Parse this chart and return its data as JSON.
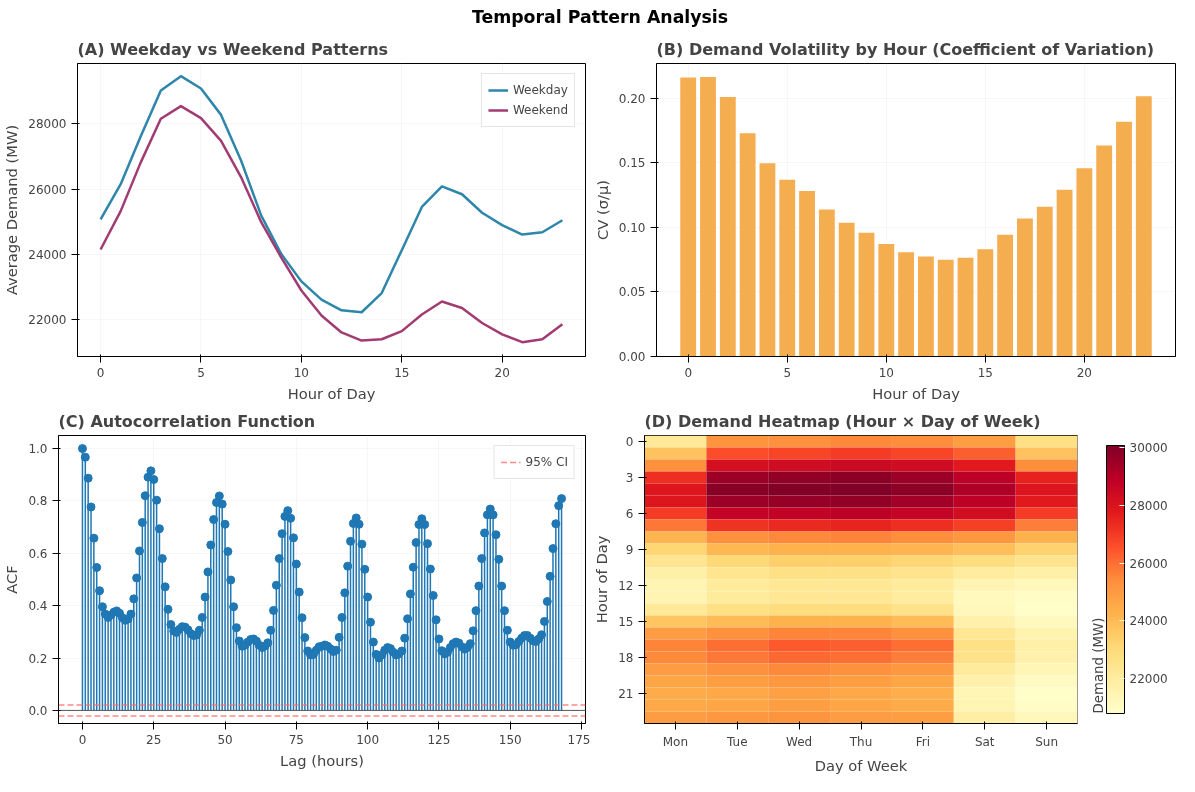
{
  "chart_data": [
    {
      "type": "other",
      "title": "Temporal Pattern Analysis"
    },
    {
      "type": "line",
      "title": "(A) Weekday vs Weekend Patterns",
      "xlabel": "Hour of Day",
      "ylabel": "Average Demand (MW)",
      "x": [
        0,
        1,
        2,
        3,
        4,
        5,
        6,
        7,
        8,
        9,
        10,
        11,
        12,
        13,
        14,
        15,
        16,
        17,
        18,
        19,
        20,
        21,
        22,
        23
      ],
      "series": [
        {
          "name": "Weekday",
          "color": "#2e86ab",
          "values": [
            25070,
            26150,
            27620,
            29030,
            29470,
            29090,
            28280,
            26870,
            25180,
            24000,
            23160,
            22600,
            22270,
            22210,
            22800,
            24120,
            25450,
            26080,
            25840,
            25270,
            24890,
            24600,
            24670,
            25040
          ]
        },
        {
          "name": "Weekend",
          "color": "#a23b72",
          "values": [
            24140,
            25320,
            26820,
            28160,
            28550,
            28180,
            27480,
            26360,
            24980,
            23890,
            22880,
            22110,
            21590,
            21340,
            21380,
            21630,
            22140,
            22540,
            22340,
            21880,
            21530,
            21290,
            21380,
            21840
          ]
        }
      ],
      "xlim": [
        -1.15,
        24.15
      ],
      "ylim": [
        20850,
        29860
      ],
      "xticks": [
        0,
        5,
        10,
        15,
        20
      ],
      "yticks": [
        22000,
        24000,
        26000,
        28000
      ],
      "grid": true,
      "legend": "top right",
      "line_style": "solid"
    },
    {
      "type": "bar",
      "title": "(B) Demand Volatility by Hour (Coefficient of Variation)",
      "xlabel": "Hour of Day",
      "ylabel": "CV (σ/μ)",
      "x": [
        0,
        1,
        2,
        3,
        4,
        5,
        6,
        7,
        8,
        9,
        10,
        11,
        12,
        13,
        14,
        15,
        16,
        17,
        18,
        19,
        20,
        21,
        22,
        23
      ],
      "values": [
        0.216,
        0.2164,
        0.2009,
        0.1729,
        0.1496,
        0.1369,
        0.1282,
        0.1138,
        0.1035,
        0.0957,
        0.087,
        0.0807,
        0.0775,
        0.0749,
        0.0764,
        0.083,
        0.0942,
        0.1069,
        0.1159,
        0.1291,
        0.1458,
        0.1634,
        0.1818,
        0.2014
      ],
      "color": "#f4ad4f",
      "xlim": [
        -1.6,
        24.6
      ],
      "ylim": [
        0,
        0.2268
      ],
      "xticks": [
        0,
        5,
        10,
        15,
        20
      ],
      "yticks": [
        {
          "value": 0,
          "label": "0.00"
        },
        {
          "value": 0.05,
          "label": "0.05"
        },
        {
          "value": 0.1,
          "label": "0.10"
        },
        {
          "value": 0.15,
          "label": "0.15"
        },
        {
          "value": 0.2,
          "label": "0.20"
        }
      ],
      "grid": true
    },
    {
      "type": "lollipop",
      "title": "(C) Autocorrelation Function",
      "xlabel": "Lag (hours)",
      "ylabel": "ACF",
      "x": [
        0,
        1,
        2,
        3,
        4,
        5,
        6,
        7,
        8,
        9,
        10,
        11,
        12,
        13,
        14,
        15,
        16,
        17,
        18,
        19,
        20,
        21,
        22,
        23,
        24,
        25,
        26,
        27,
        28,
        29,
        30,
        31,
        32,
        33,
        34,
        35,
        36,
        37,
        38,
        39,
        40,
        41,
        42,
        43,
        44,
        45,
        46,
        47,
        48,
        49,
        50,
        51,
        52,
        53,
        54,
        55,
        56,
        57,
        58,
        59,
        60,
        61,
        62,
        63,
        64,
        65,
        66,
        67,
        68,
        69,
        70,
        71,
        72,
        73,
        74,
        75,
        76,
        77,
        78,
        79,
        80,
        81,
        82,
        83,
        84,
        85,
        86,
        87,
        88,
        89,
        90,
        91,
        92,
        93,
        94,
        95,
        96,
        97,
        98,
        99,
        100,
        101,
        102,
        103,
        104,
        105,
        106,
        107,
        108,
        109,
        110,
        111,
        112,
        113,
        114,
        115,
        116,
        117,
        118,
        119,
        120,
        121,
        122,
        123,
        124,
        125,
        126,
        127,
        128,
        129,
        130,
        131,
        132,
        133,
        134,
        135,
        136,
        137,
        138,
        139,
        140,
        141,
        142,
        143,
        144,
        145,
        146,
        147,
        148,
        149,
        150,
        151,
        152,
        153,
        154,
        155,
        156,
        157,
        158,
        159,
        160,
        161,
        162,
        163,
        164,
        165,
        166,
        167,
        168
      ],
      "values": [
        1.0,
        0.967,
        0.887,
        0.777,
        0.658,
        0.546,
        0.457,
        0.396,
        0.368,
        0.355,
        0.364,
        0.375,
        0.38,
        0.371,
        0.354,
        0.344,
        0.349,
        0.368,
        0.426,
        0.506,
        0.609,
        0.718,
        0.82,
        0.891,
        0.915,
        0.882,
        0.803,
        0.694,
        0.58,
        0.472,
        0.386,
        0.328,
        0.303,
        0.298,
        0.31,
        0.32,
        0.318,
        0.308,
        0.293,
        0.286,
        0.288,
        0.306,
        0.355,
        0.433,
        0.529,
        0.632,
        0.729,
        0.794,
        0.819,
        0.788,
        0.711,
        0.607,
        0.498,
        0.396,
        0.316,
        0.265,
        0.245,
        0.249,
        0.261,
        0.271,
        0.273,
        0.265,
        0.249,
        0.24,
        0.246,
        0.258,
        0.306,
        0.382,
        0.478,
        0.58,
        0.675,
        0.741,
        0.763,
        0.734,
        0.659,
        0.559,
        0.452,
        0.354,
        0.278,
        0.227,
        0.212,
        0.214,
        0.23,
        0.243,
        0.245,
        0.25,
        0.245,
        0.235,
        0.225,
        0.23,
        0.279,
        0.355,
        0.449,
        0.551,
        0.646,
        0.714,
        0.735,
        0.711,
        0.635,
        0.539,
        0.433,
        0.337,
        0.261,
        0.214,
        0.2,
        0.212,
        0.23,
        0.24,
        0.236,
        0.222,
        0.212,
        0.216,
        0.227,
        0.276,
        0.35,
        0.445,
        0.547,
        0.641,
        0.71,
        0.732,
        0.71,
        0.637,
        0.54,
        0.439,
        0.346,
        0.273,
        0.228,
        0.216,
        0.222,
        0.24,
        0.255,
        0.261,
        0.257,
        0.243,
        0.234,
        0.24,
        0.255,
        0.304,
        0.381,
        0.475,
        0.58,
        0.678,
        0.747,
        0.769,
        0.747,
        0.671,
        0.577,
        0.475,
        0.381,
        0.306,
        0.261,
        0.249,
        0.251,
        0.263,
        0.276,
        0.286,
        0.286,
        0.276,
        0.266,
        0.263,
        0.273,
        0.289,
        0.34,
        0.416,
        0.512,
        0.618,
        0.713,
        0.782,
        0.809
      ],
      "color": "#1f77b4",
      "marker": "circle",
      "xlim": [
        -8.4,
        176.4
      ],
      "ylim": [
        -0.05,
        1.05
      ],
      "xticks": [
        0,
        25,
        50,
        75,
        100,
        125,
        150,
        175
      ],
      "yticks": [
        {
          "value": 0,
          "label": "0.0"
        },
        {
          "value": 0.2,
          "label": "0.2"
        },
        {
          "value": 0.4,
          "label": "0.4"
        },
        {
          "value": 0.6,
          "label": "0.6"
        },
        {
          "value": 0.8,
          "label": "0.8"
        },
        {
          "value": 1,
          "label": "1.0"
        }
      ],
      "ref_lines": [
        {
          "axis": "y",
          "value": 0.021,
          "label": "95% CI",
          "color": "#ff6b6b",
          "line_style": "dashed"
        },
        {
          "axis": "y",
          "value": -0.021,
          "color": "#ff6b6b",
          "line_style": "dashed"
        }
      ],
      "grid": true,
      "legend": "top right"
    },
    {
      "type": "heatmap",
      "title": "(D) Demand Heatmap (Hour × Day of Week)",
      "xlabel": "Day of Week",
      "ylabel": "Hour of Day",
      "clabel": "Demand (MW)",
      "categories": [
        "Mon",
        "Tue",
        "Wed",
        "Thu",
        "Fri",
        "Sat",
        "Sun"
      ],
      "y_categories": [
        "0",
        null,
        null,
        "3",
        null,
        null,
        "6",
        null,
        null,
        "9",
        null,
        null,
        "12",
        null,
        null,
        "15",
        null,
        null,
        "18",
        null,
        null,
        "21",
        null,
        null
      ],
      "cells": [
        [
          22200,
          25200,
          25300,
          25500,
          25400,
          24900,
          22700
        ],
        [
          23800,
          26600,
          26800,
          27000,
          26800,
          26300,
          23800
        ],
        [
          25300,
          28200,
          28400,
          28500,
          28400,
          27800,
          25400
        ],
        [
          27300,
          29500,
          29700,
          29800,
          29500,
          28900,
          27600
        ],
        [
          27900,
          29900,
          30000,
          30070,
          29800,
          29200,
          28000
        ],
        [
          27900,
          29500,
          29600,
          29700,
          29400,
          28900,
          27800
        ],
        [
          27000,
          28700,
          28800,
          28900,
          28700,
          28300,
          27000
        ],
        [
          25800,
          27200,
          27400,
          27500,
          27300,
          26900,
          25700
        ],
        [
          24200,
          25300,
          25500,
          25600,
          25400,
          25100,
          24300
        ],
        [
          23200,
          24100,
          24300,
          24300,
          24200,
          23900,
          23300
        ],
        [
          22400,
          23100,
          23400,
          23400,
          23200,
          22900,
          22500
        ],
        [
          21800,
          22400,
          22700,
          22700,
          22500,
          22000,
          21800
        ],
        [
          21500,
          22100,
          22300,
          22300,
          22100,
          21500,
          21300
        ],
        [
          21500,
          22100,
          22300,
          22300,
          22000,
          21200,
          21000
        ],
        [
          22200,
          22700,
          22900,
          22900,
          22600,
          21300,
          20900
        ],
        [
          23700,
          24000,
          24300,
          24300,
          24000,
          21700,
          21200
        ],
        [
          25000,
          25300,
          25600,
          25600,
          25300,
          22300,
          21600
        ],
        [
          25600,
          26000,
          26400,
          26300,
          26000,
          22700,
          21800
        ],
        [
          25500,
          25800,
          26100,
          26000,
          25700,
          22600,
          21700
        ],
        [
          25000,
          25300,
          25500,
          25300,
          25100,
          22100,
          21400
        ],
        [
          24700,
          24900,
          25100,
          24900,
          24700,
          21700,
          21100
        ],
        [
          24500,
          24600,
          24800,
          24600,
          24400,
          21400,
          20900
        ],
        [
          24600,
          24700,
          24900,
          24700,
          24500,
          21500,
          21000
        ],
        [
          25000,
          25100,
          25200,
          25000,
          24900,
          21900,
          21300
        ]
      ],
      "clim": [
        20800,
        30070
      ],
      "cticks": [
        22000,
        24000,
        26000,
        28000,
        30000
      ]
    }
  ]
}
